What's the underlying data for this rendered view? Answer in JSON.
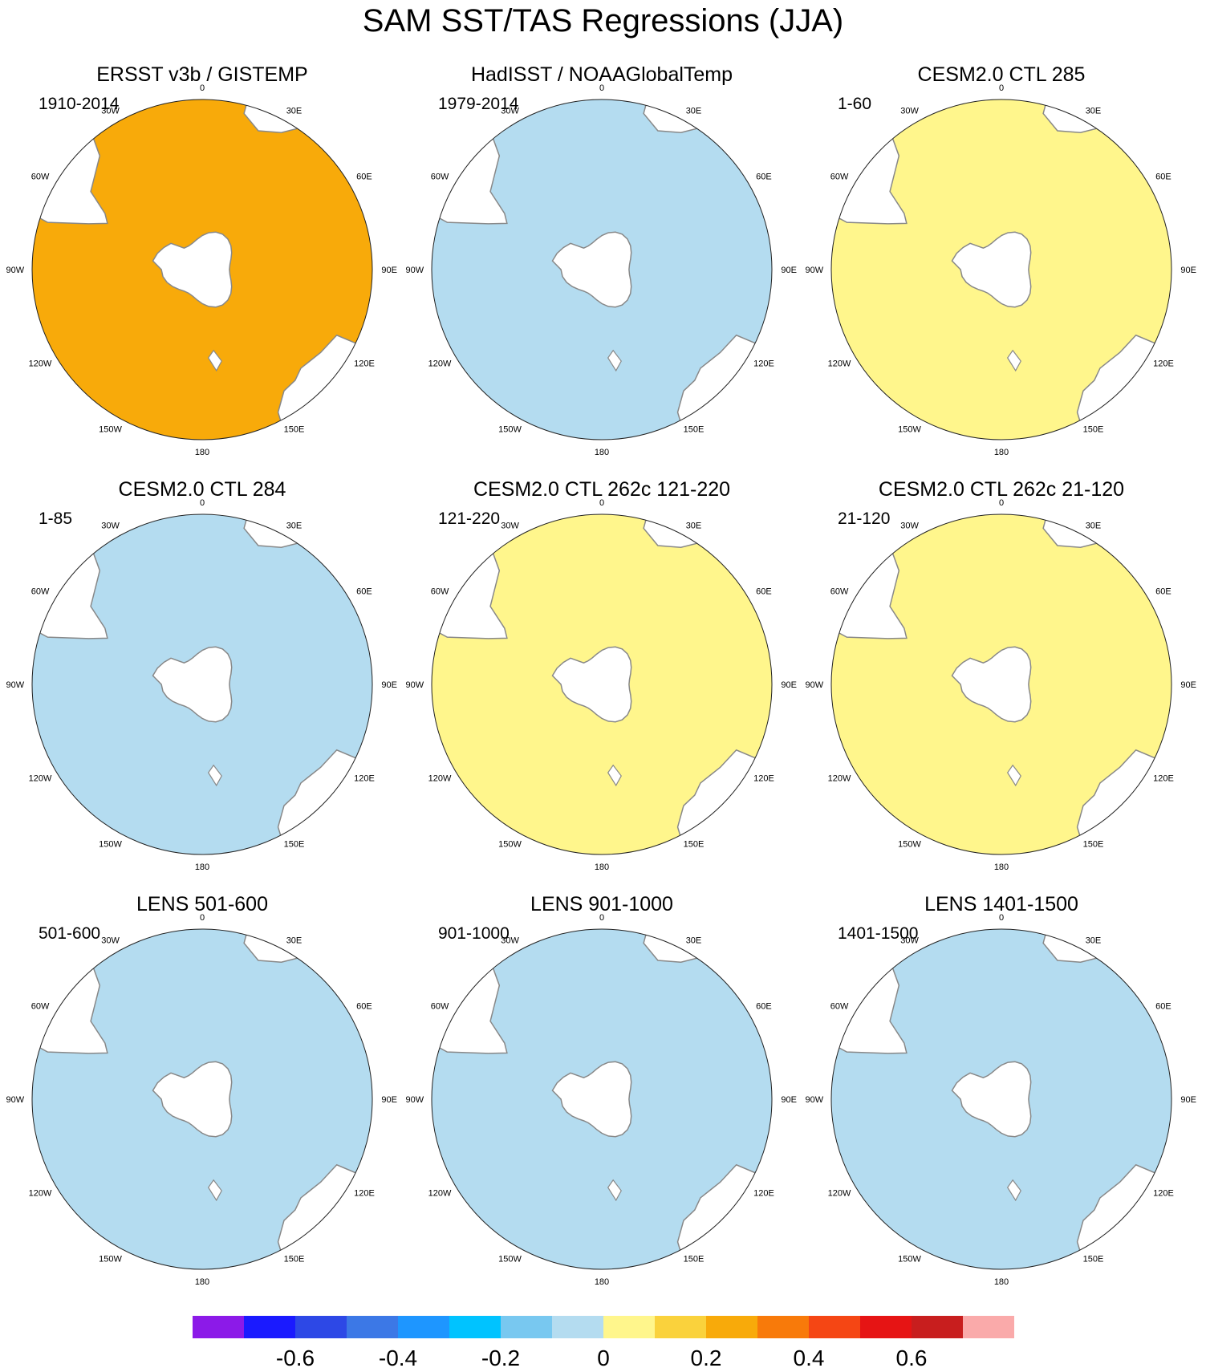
{
  "title": "SAM SST/TAS Regressions (JJA)",
  "colors": {
    "land_ice": "#ffffff",
    "coast": "#888888",
    "outline": "#222222",
    "levels": [
      "#8c1ae8",
      "#1a1aff",
      "#2d48e6",
      "#3c78e6",
      "#1e96ff",
      "#00c3ff",
      "#78c8f0",
      "#b4dcf0",
      "#fff68c",
      "#fad23c",
      "#f8aa0a",
      "#f87a0a",
      "#f54614",
      "#e61414",
      "#c81e1e",
      "#faaaaa"
    ]
  },
  "longitude_labels": {
    "top": "0",
    "bottom": "180",
    "tr30": "30E",
    "tr60": "60E",
    "r90": "90E",
    "br120": "120E",
    "br150": "150E",
    "tl30": "30W",
    "tl60": "60W",
    "l90": "90W",
    "bl120": "120W",
    "bl150": "150W"
  },
  "panels": [
    {
      "title": "ERSST v3b / GISTEMP",
      "period": "1910-2014",
      "ocean_level": 10
    },
    {
      "title": "HadISST / NOAAGlobalTemp",
      "period": "1979-2014",
      "ocean_level": 7
    },
    {
      "title": "CESM2.0 CTL 285",
      "period": "1-60",
      "ocean_level": 8
    },
    {
      "title": "CESM2.0 CTL 284",
      "period": "1-85",
      "ocean_level": 7
    },
    {
      "title": "CESM2.0 CTL 262c 121-220",
      "period": "121-220",
      "ocean_level": 8
    },
    {
      "title": "CESM2.0 CTL 262c 21-120",
      "period": "21-120",
      "ocean_level": 8
    },
    {
      "title": "LENS 501-600",
      "period": "501-600",
      "ocean_level": 7
    },
    {
      "title": "LENS 901-1000",
      "period": "901-1000",
      "ocean_level": 7
    },
    {
      "title": "LENS 1401-1500",
      "period": "1401-1500",
      "ocean_level": 7
    }
  ],
  "colorbar": {
    "labels": [
      "-0.6",
      "-0.4",
      "-0.2",
      "0",
      "0.2",
      "0.4",
      "0.6"
    ],
    "label_boundary_index": [
      2,
      4,
      6,
      8,
      10,
      12,
      14
    ]
  }
}
